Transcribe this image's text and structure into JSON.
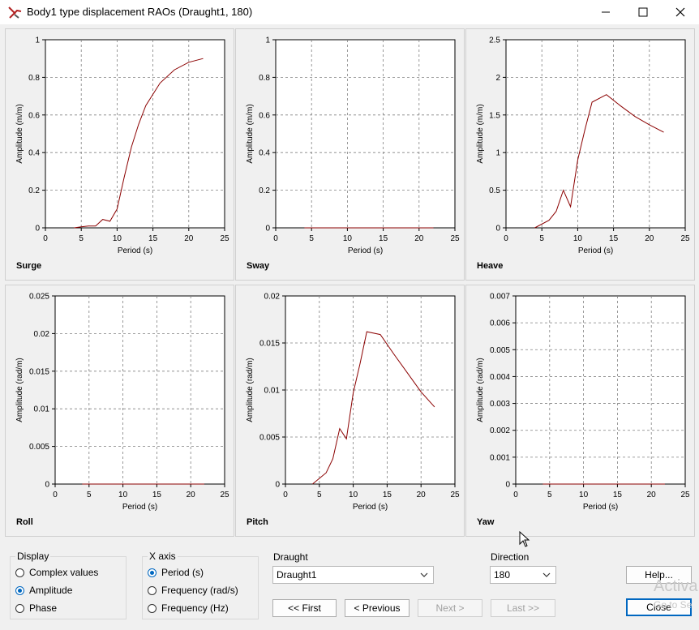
{
  "window": {
    "title": "Body1 type displacement RAOs (Draught1, 180)",
    "app_icon": "wrench-logo-icon",
    "controls": {
      "minimize": "minimize-icon",
      "maximize": "maximize-icon",
      "close": "close-icon"
    }
  },
  "colors": {
    "series": "#8b0000",
    "grid": "#808080",
    "accent": "#0067c0"
  },
  "chart_data": [
    {
      "type": "line",
      "label": "Surge",
      "xlabel": "Period (s)",
      "ylabel": "Amplitude (m/m)",
      "xlim": [
        0,
        25
      ],
      "ylim": [
        0,
        1
      ],
      "xticks": [
        "0",
        "5",
        "10",
        "15",
        "20",
        "25"
      ],
      "yticks": [
        "0",
        "0.2",
        "0.4",
        "0.6",
        "0.8",
        "1"
      ],
      "ytick_values": [
        0,
        0.2,
        0.4,
        0.6,
        0.8,
        1
      ],
      "x": [
        4,
        5,
        6,
        7,
        8,
        9,
        10,
        11,
        12,
        13,
        14,
        16,
        18,
        20,
        22
      ],
      "y": [
        0,
        0.005,
        0.01,
        0.01,
        0.045,
        0.035,
        0.1,
        0.27,
        0.43,
        0.55,
        0.65,
        0.77,
        0.84,
        0.88,
        0.9
      ]
    },
    {
      "type": "line",
      "label": "Sway",
      "xlabel": "Period (s)",
      "ylabel": "Amplitude (m/m)",
      "xlim": [
        0,
        25
      ],
      "ylim": [
        0,
        1
      ],
      "xticks": [
        "0",
        "5",
        "10",
        "15",
        "20",
        "25"
      ],
      "yticks": [
        "0",
        "0.2",
        "0.4",
        "0.6",
        "0.8",
        "1"
      ],
      "ytick_values": [
        0,
        0.2,
        0.4,
        0.6,
        0.8,
        1
      ],
      "x": [
        4,
        22
      ],
      "y": [
        0,
        0
      ]
    },
    {
      "type": "line",
      "label": "Heave",
      "xlabel": "Period (s)",
      "ylabel": "Amplitude (m/m)",
      "xlim": [
        0,
        25
      ],
      "ylim": [
        0,
        2.5
      ],
      "xticks": [
        "0",
        "5",
        "10",
        "15",
        "20",
        "25"
      ],
      "yticks": [
        "0",
        "0.5",
        "1",
        "1.5",
        "2",
        "2.5"
      ],
      "ytick_values": [
        0,
        0.5,
        1,
        1.5,
        2,
        2.5
      ],
      "x": [
        4,
        6,
        7,
        8,
        9,
        10,
        11,
        12,
        14,
        16,
        18,
        20,
        22
      ],
      "y": [
        0,
        0.1,
        0.22,
        0.5,
        0.28,
        0.9,
        1.3,
        1.67,
        1.77,
        1.62,
        1.48,
        1.37,
        1.27
      ]
    },
    {
      "type": "line",
      "label": "Roll",
      "xlabel": "Period (s)",
      "ylabel": "Amplitude (rad/m)",
      "xlim": [
        0,
        25
      ],
      "ylim": [
        0,
        0.025
      ],
      "xticks": [
        "0",
        "5",
        "10",
        "15",
        "20",
        "25"
      ],
      "yticks": [
        "0",
        "0.005",
        "0.01",
        "0.015",
        "0.02",
        "0.025"
      ],
      "ytick_values": [
        0,
        0.005,
        0.01,
        0.015,
        0.02,
        0.025
      ],
      "x": [
        4,
        22
      ],
      "y": [
        0,
        0
      ]
    },
    {
      "type": "line",
      "label": "Pitch",
      "xlabel": "Period (s)",
      "ylabel": "Amplitude (rad/m)",
      "xlim": [
        0,
        25
      ],
      "ylim": [
        0,
        0.02
      ],
      "xticks": [
        "0",
        "5",
        "10",
        "15",
        "20",
        "25"
      ],
      "yticks": [
        "0",
        "0.005",
        "0.01",
        "0.015",
        "0.02"
      ],
      "ytick_values": [
        0,
        0.005,
        0.01,
        0.015,
        0.02
      ],
      "x": [
        4,
        6,
        7,
        8,
        9,
        10,
        11,
        12,
        14,
        16,
        18,
        20,
        22
      ],
      "y": [
        0,
        0.0012,
        0.0027,
        0.0059,
        0.0048,
        0.0097,
        0.0128,
        0.0162,
        0.0159,
        0.0138,
        0.0118,
        0.0098,
        0.0082
      ]
    },
    {
      "type": "line",
      "label": "Yaw",
      "xlabel": "Period (s)",
      "ylabel": "Amplitude (rad/m)",
      "xlim": [
        0,
        25
      ],
      "ylim": [
        0,
        0.007
      ],
      "xticks": [
        "0",
        "5",
        "10",
        "15",
        "20",
        "25"
      ],
      "yticks": [
        "0",
        "0.001",
        "0.002",
        "0.003",
        "0.004",
        "0.005",
        "0.006",
        "0.007"
      ],
      "ytick_values": [
        0,
        0.001,
        0.002,
        0.003,
        0.004,
        0.005,
        0.006,
        0.007
      ],
      "x": [
        4,
        22
      ],
      "y": [
        0,
        0
      ]
    }
  ],
  "display": {
    "title": "Display",
    "options": [
      {
        "label": "Complex values",
        "checked": false
      },
      {
        "label": "Amplitude",
        "checked": true
      },
      {
        "label": "Phase",
        "checked": false
      }
    ]
  },
  "xaxis": {
    "title": "X axis",
    "options": [
      {
        "label": "Period (s)",
        "checked": true
      },
      {
        "label": "Frequency (rad/s)",
        "checked": false
      },
      {
        "label": "Frequency (Hz)",
        "checked": false
      }
    ]
  },
  "draught": {
    "label": "Draught",
    "value": "Draught1"
  },
  "direction": {
    "label": "Direction",
    "value": "180"
  },
  "nav": {
    "first": "<<  First",
    "previous": "<  Previous",
    "next": "Next  >",
    "last": "Last  >>"
  },
  "buttons": {
    "help": "Help...",
    "close": "Close"
  },
  "watermark": {
    "line1": "Activa",
    "line2": "Go to Se"
  }
}
